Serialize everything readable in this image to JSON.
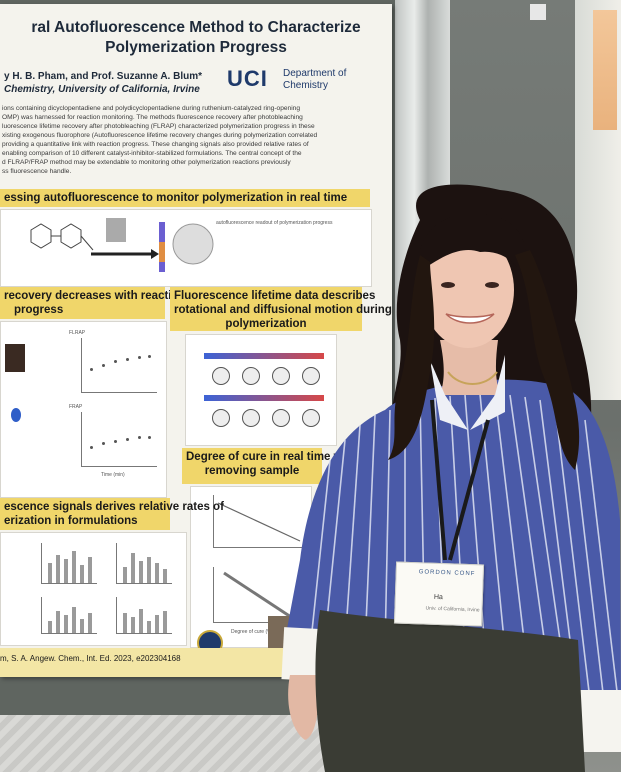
{
  "poster": {
    "title_lines": [
      "ral Autofluorescence Method to Characterize",
      "Polymerization Progress"
    ],
    "authors": "y H. B. Pham, and Prof. Suzanne A. Blum*",
    "affiliation": "Chemistry, University of California, Irvine",
    "logo_text": "UCI",
    "department_lines": [
      "Department of",
      "Chemistry"
    ],
    "abstract_lines": [
      "ions containing dicyclopentadiene and polydicyclopentadiene during ruthenium-catalyzed ring-opening",
      "OMP) was harnessed for reaction monitoring. The methods fluorescence recovery after photobleaching",
      "luorescence lifetime recovery after photobleaching (FLRAP) characterized polymerization progress in these",
      "xisting exogenous fluorophore (Autofluorescence lifetime recovery changes during polymerization correlated",
      "providing a quantitative link with reaction progress. These changing signals also provided relative rates of",
      "enabling comparison of 10 different catalyst-inhibitor-stabilized formulations. The central concept of the",
      "d FLRAP/FRAP method may be extendable to monitoring other polymerization reactions previously",
      "ss fluorescence handle."
    ],
    "section_headers": {
      "s1": "essing autofluorescence to monitor polymerization in real time",
      "s2": [
        "recovery decreases with reaction",
        "progress"
      ],
      "s3": [
        "Fluorescence lifetime data describes",
        "rotational and diffusional motion during",
        "polymerization"
      ],
      "s4": [
        "Degree of cure in real time wit",
        "removing sample"
      ],
      "s5": [
        "escence signals derives relative rates of",
        "erization in formulations"
      ]
    },
    "small_labels": {
      "flrap": "FLRAP",
      "frap": "FRAP",
      "autofluor": "autofluorescence readout of polymerization progress",
      "time_axis": "Time (min)",
      "degree_of_cure": "Degree of cure (%)"
    },
    "citation": "m, S. A. Angew. Chem., Int. Ed. 2023, e202304168"
  },
  "badge": {
    "header": "GORDON CONF",
    "name": "Ha",
    "subtitle": "Univ. of California, Irvine"
  },
  "colors": {
    "poster_bg": "#f4f3ed",
    "section_yellow": "#f0d66a",
    "uci_blue": "#1f3a6b",
    "shirt_blue": "#4a5aa8",
    "hair": "#1c1210"
  }
}
